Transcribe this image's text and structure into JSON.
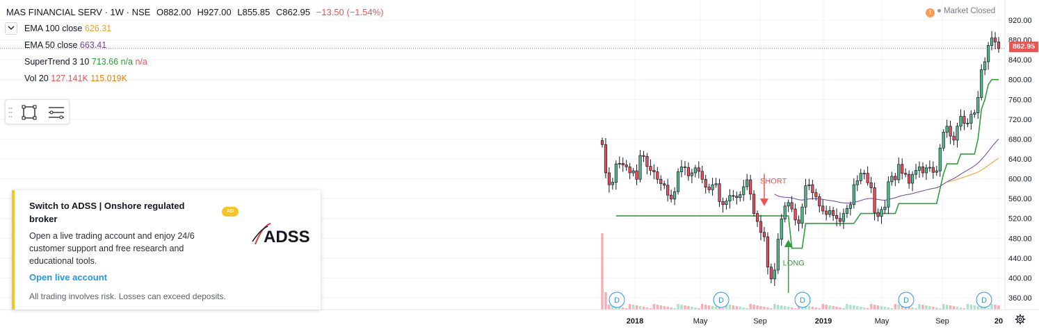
{
  "header": {
    "symbol": "MAS FINANCIAL SERV · 1W · NSE",
    "open": "O882.00",
    "high": "H927.00",
    "low": "L855.85",
    "close": "C862.95",
    "change": "−13.50 (−1.54%)"
  },
  "indicators": {
    "ema100": {
      "label": "EMA 100 close",
      "value": "626.31",
      "color": "#f0a020"
    },
    "ema50": {
      "label": "EMA 50 close",
      "value": "663.41",
      "color": "#6b3fa0"
    },
    "supertrend": {
      "label": "SuperTrend 3 10",
      "value": "713.66",
      "na1": "n/a",
      "na2": "n/a"
    },
    "volume": {
      "label": "Vol 20",
      "value1": "127.141K",
      "value2": "115.019K"
    }
  },
  "market_status": "Market Closed",
  "current_price_tag": "862.95",
  "ad": {
    "title": "Switch to ADSS | Onshore regulated broker",
    "badge": "AD",
    "body": "Open a live trading account and enjoy 24/6 customer support and free research and educational tools.",
    "link": "Open live account",
    "disclaimer": "All trading involves risk. Losses can exceed deposits.",
    "logo_text": "ADSS"
  },
  "chart_data": {
    "type": "candlestick",
    "title": "MAS FINANCIAL SERV · 1W · NSE",
    "y_ticks": [
      920,
      880,
      840,
      800,
      760,
      720,
      680,
      640,
      600,
      560,
      520,
      480,
      440,
      400,
      360
    ],
    "ylim": [
      340,
      950
    ],
    "x_ticks": [
      "2018",
      "May",
      "Sep",
      "2019",
      "May",
      "Sep",
      "20"
    ],
    "last_price": 862.95,
    "markers": {
      "short_label": "SHORT",
      "long_label": "LONG",
      "dividend_label": "D"
    },
    "dividend_count": 5,
    "colors": {
      "up": "#53b987",
      "down": "#eb4d5c",
      "ema100": "#f0a020",
      "ema50": "#6b3fa0",
      "supertrend_up": "#2e9e3a",
      "supertrend_down": "#ef5350"
    },
    "close_series": [
      669,
      612,
      588,
      593,
      630,
      631,
      628,
      624,
      612,
      616,
      599,
      647,
      645,
      625,
      617,
      614,
      599,
      590,
      587,
      567,
      559,
      574,
      614,
      624,
      623,
      606,
      612,
      622,
      615,
      599,
      583,
      578,
      588,
      590,
      554,
      548,
      555,
      566,
      565,
      562,
      568,
      584,
      598,
      569,
      530,
      514,
      492,
      483,
      422,
      398,
      416,
      478,
      519,
      545,
      552,
      539,
      517,
      510,
      543,
      586,
      588,
      572,
      564,
      545,
      535,
      528,
      536,
      526,
      520,
      514,
      530,
      540,
      548,
      588,
      596,
      611,
      611,
      592,
      582,
      532,
      524,
      538,
      543,
      594,
      605,
      598,
      629,
      611,
      609,
      591,
      609,
      617,
      624,
      612,
      622,
      623,
      613,
      616,
      662,
      694,
      706,
      686,
      678,
      706,
      726,
      712,
      712,
      730,
      733,
      764,
      820,
      836,
      869,
      884,
      876,
      862.95
    ]
  }
}
